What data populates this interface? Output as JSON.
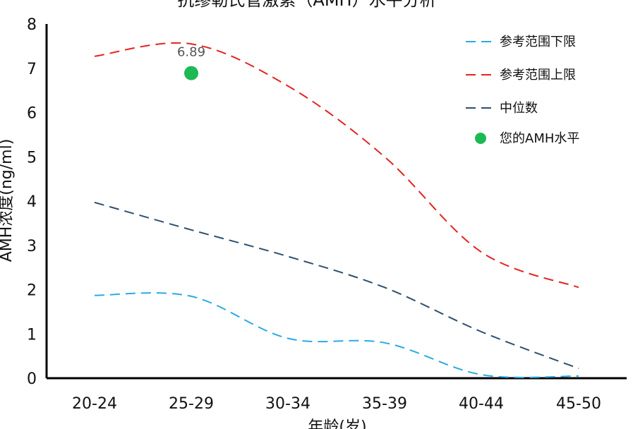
{
  "chart_data": {
    "type": "line",
    "title": "抗缪勒氏管激素（AMH）水平分析",
    "xlabel": "年龄(岁)",
    "ylabel": "AMH浓度(ng/ml)",
    "categories": [
      "20-24",
      "25-29",
      "30-34",
      "35-39",
      "40-44",
      "45-50"
    ],
    "ylim": [
      0,
      8
    ],
    "yticks": [
      0,
      1,
      2,
      3,
      4,
      5,
      6,
      7,
      8
    ],
    "grid": false,
    "legend_position": "top-right",
    "series": [
      {
        "name": "参考范围下限",
        "values": [
          1.87,
          1.85,
          0.9,
          0.8,
          0.08,
          0.05
        ],
        "color": "#29abe2",
        "style": "dashed"
      },
      {
        "name": "参考范围上限",
        "values": [
          7.27,
          7.55,
          6.6,
          5.0,
          2.85,
          2.05
        ],
        "color": "#e32424",
        "style": "dashed"
      },
      {
        "name": "中位数",
        "values": [
          3.97,
          3.35,
          2.75,
          2.05,
          1.05,
          0.22
        ],
        "color": "#2f4f6f",
        "style": "dashed"
      }
    ],
    "point": {
      "name": "您的AMH水平",
      "category": "25-29",
      "value": 6.89,
      "label": "6.89",
      "color": "#1db954"
    }
  }
}
